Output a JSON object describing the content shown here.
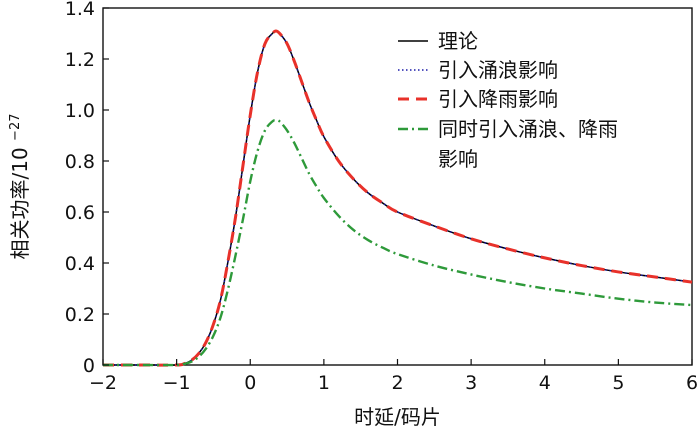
{
  "chart_data": {
    "type": "line",
    "xlabel": "时延/码片",
    "ylabel": "相关功率/10",
    "ylabel_exponent": "−27",
    "xlim": [
      -2,
      6
    ],
    "ylim": [
      0,
      1.4
    ],
    "xticks": [
      -2,
      -1,
      0,
      1,
      2,
      3,
      4,
      5,
      6
    ],
    "yticks": [
      0,
      0.2,
      0.4,
      0.6,
      0.8,
      1.0,
      1.2,
      1.4
    ],
    "xtick_labels": [
      "−2",
      "−1",
      "0",
      "1",
      "2",
      "3",
      "4",
      "5",
      "6"
    ],
    "ytick_labels": [
      "0",
      "0.2",
      "0.4",
      "0.6",
      "0.8",
      "1.0",
      "1.2",
      "1.4"
    ],
    "grid": false,
    "legend_position": "top-right",
    "series": [
      {
        "name": "理论",
        "color": "#000000",
        "style": "solid",
        "x": [
          -2,
          -1.5,
          -1,
          -0.9,
          -0.8,
          -0.7,
          -0.6,
          -0.5,
          -0.4,
          -0.3,
          -0.2,
          -0.1,
          0,
          0.1,
          0.2,
          0.3,
          0.35,
          0.4,
          0.5,
          0.6,
          0.7,
          0.8,
          0.9,
          1.0,
          1.2,
          1.4,
          1.6,
          1.8,
          2.0,
          2.5,
          3.0,
          3.5,
          4.0,
          4.5,
          5.0,
          5.5,
          6.0
        ],
        "y": [
          0,
          0,
          0,
          0.005,
          0.018,
          0.045,
          0.09,
          0.16,
          0.26,
          0.41,
          0.58,
          0.78,
          0.98,
          1.15,
          1.26,
          1.3,
          1.31,
          1.3,
          1.26,
          1.19,
          1.11,
          1.03,
          0.96,
          0.895,
          0.8,
          0.73,
          0.675,
          0.635,
          0.6,
          0.545,
          0.495,
          0.455,
          0.42,
          0.39,
          0.365,
          0.345,
          0.325
        ]
      },
      {
        "name": "引入涌浪影响",
        "color": "#1a1aa8",
        "style": "dotted",
        "x": [
          -2,
          -1.5,
          -1,
          -0.9,
          -0.8,
          -0.7,
          -0.6,
          -0.5,
          -0.4,
          -0.3,
          -0.2,
          -0.1,
          0,
          0.1,
          0.2,
          0.3,
          0.35,
          0.4,
          0.5,
          0.6,
          0.7,
          0.8,
          0.9,
          1.0,
          1.2,
          1.4,
          1.6,
          1.8,
          2.0,
          2.5,
          3.0,
          3.5,
          4.0,
          4.5,
          5.0,
          5.5,
          6.0
        ],
        "y": [
          0,
          0,
          0,
          0.005,
          0.018,
          0.045,
          0.09,
          0.16,
          0.26,
          0.41,
          0.58,
          0.78,
          0.98,
          1.15,
          1.26,
          1.3,
          1.31,
          1.3,
          1.26,
          1.19,
          1.11,
          1.03,
          0.96,
          0.895,
          0.8,
          0.73,
          0.675,
          0.635,
          0.6,
          0.545,
          0.495,
          0.455,
          0.42,
          0.39,
          0.365,
          0.345,
          0.325
        ]
      },
      {
        "name": "引入降雨影响",
        "color": "#e8312a",
        "style": "dashed",
        "x": [
          -2,
          -1.5,
          -1,
          -0.9,
          -0.8,
          -0.7,
          -0.6,
          -0.5,
          -0.4,
          -0.3,
          -0.2,
          -0.1,
          0,
          0.1,
          0.2,
          0.3,
          0.35,
          0.4,
          0.5,
          0.6,
          0.7,
          0.8,
          0.9,
          1.0,
          1.2,
          1.4,
          1.6,
          1.8,
          2.0,
          2.5,
          3.0,
          3.5,
          4.0,
          4.5,
          5.0,
          5.5,
          6.0
        ],
        "y": [
          0,
          0,
          0,
          0.005,
          0.018,
          0.045,
          0.09,
          0.16,
          0.26,
          0.41,
          0.58,
          0.78,
          0.98,
          1.15,
          1.26,
          1.3,
          1.31,
          1.3,
          1.26,
          1.19,
          1.11,
          1.03,
          0.96,
          0.895,
          0.8,
          0.73,
          0.675,
          0.635,
          0.6,
          0.545,
          0.495,
          0.455,
          0.42,
          0.39,
          0.365,
          0.345,
          0.325
        ]
      },
      {
        "name": "同时引入涌浪、降雨影响",
        "name_lines": [
          "同时引入涌浪、降雨",
          "影响"
        ],
        "color": "#2e9a3a",
        "style": "dashdot",
        "x": [
          -2,
          -1.5,
          -1,
          -0.9,
          -0.8,
          -0.7,
          -0.6,
          -0.5,
          -0.4,
          -0.3,
          -0.2,
          -0.1,
          0,
          0.1,
          0.2,
          0.3,
          0.35,
          0.4,
          0.5,
          0.6,
          0.7,
          0.8,
          0.9,
          1.0,
          1.2,
          1.4,
          1.6,
          1.8,
          2.0,
          2.5,
          3.0,
          3.5,
          4.0,
          4.5,
          5.0,
          5.5,
          6.0
        ],
        "y": [
          0,
          0,
          0,
          0.004,
          0.013,
          0.032,
          0.065,
          0.115,
          0.19,
          0.3,
          0.43,
          0.57,
          0.72,
          0.84,
          0.92,
          0.955,
          0.96,
          0.955,
          0.92,
          0.87,
          0.81,
          0.75,
          0.7,
          0.655,
          0.585,
          0.53,
          0.49,
          0.46,
          0.435,
          0.39,
          0.355,
          0.325,
          0.3,
          0.28,
          0.26,
          0.245,
          0.235
        ]
      }
    ]
  }
}
